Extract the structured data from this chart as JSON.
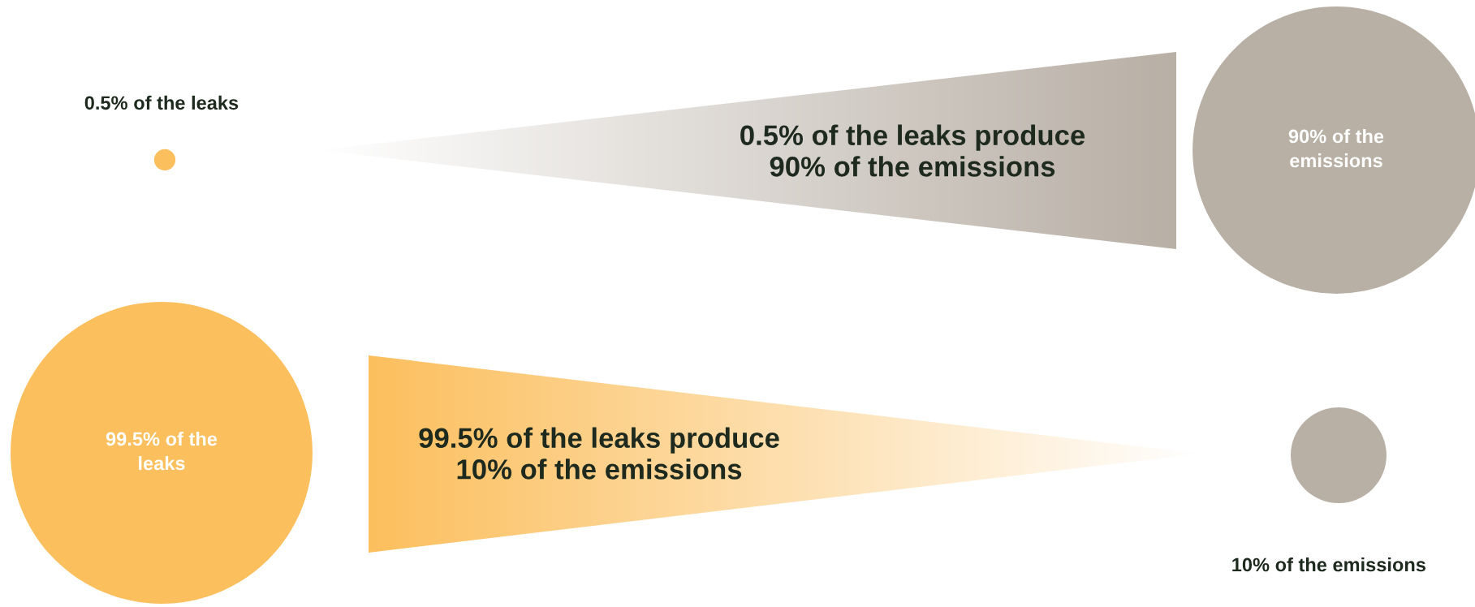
{
  "chart_data": {
    "type": "other",
    "categories": [
      "of the leaks",
      "of the\nemissions",
      "of the\nleaks",
      "of the emissions"
    ],
    "values": [
      0.5,
      90,
      99.5,
      10
    ],
    "value_labels": [
      "0.5%",
      "90%",
      "99.5%",
      "10%"
    ],
    "colors": [
      "#fcbf5e",
      "#b8afa5",
      "#fcbf5e",
      "#b8afa5"
    ],
    "annotations": [
      "0.5% of the leaks produce\n90% of the emissions",
      "99.5% of the leaks produce\n10% of the emissions"
    ]
  }
}
